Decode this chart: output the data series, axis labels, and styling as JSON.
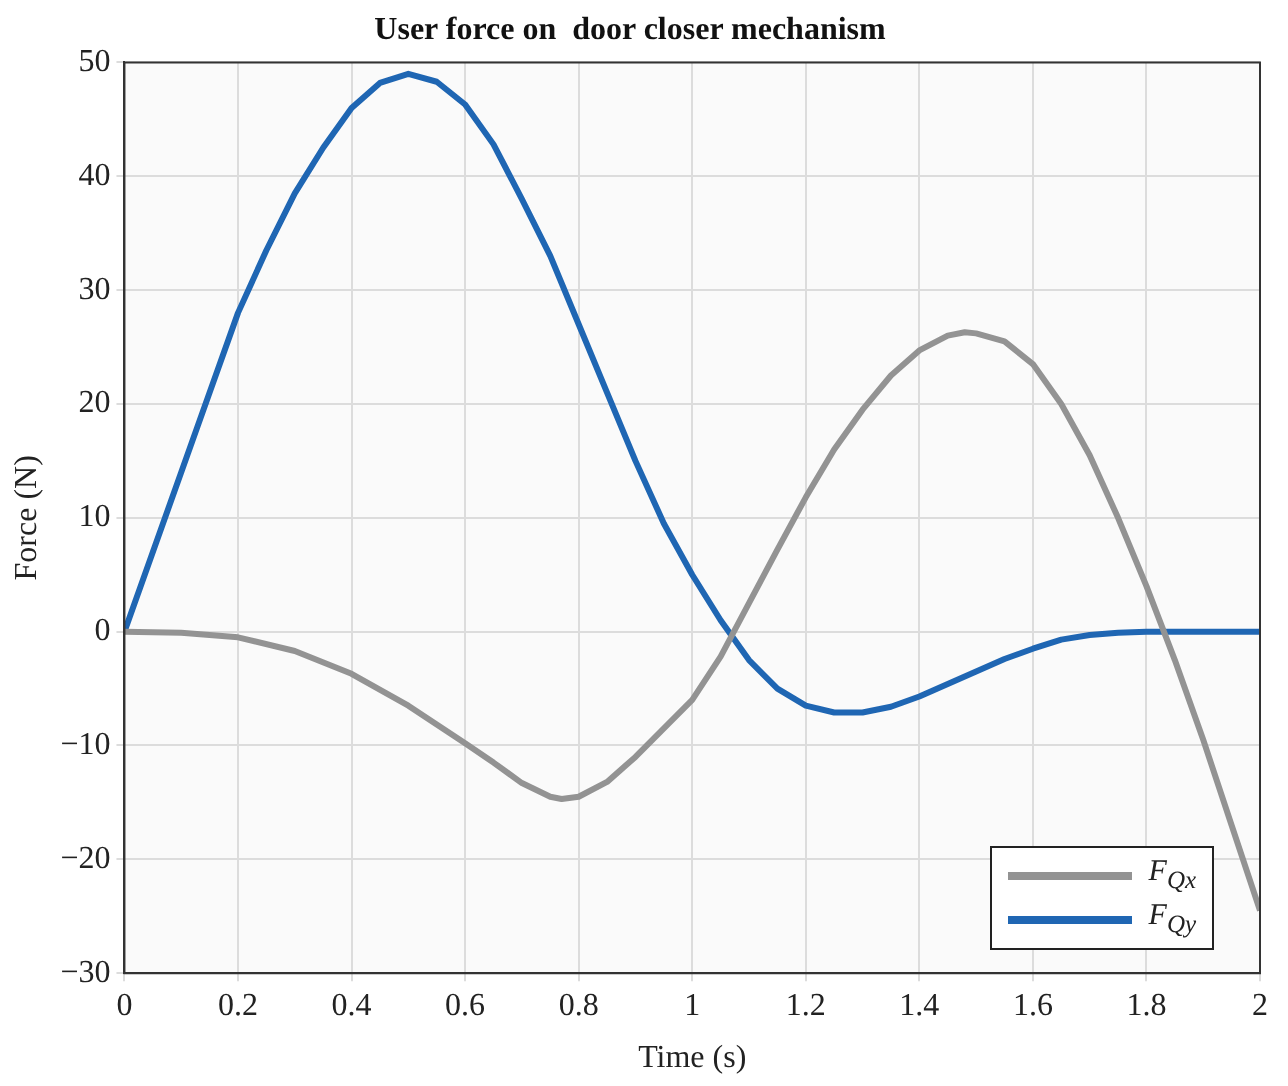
{
  "chart_data": {
    "type": "line",
    "title": "User force on  door closer mechanism",
    "xlabel": "Time (s)",
    "ylabel": "Force (N)",
    "xlim": [
      0,
      2
    ],
    "xticks": [
      0,
      0.2,
      0.4,
      0.6,
      0.8,
      1,
      1.2,
      1.4,
      1.6,
      1.8,
      2
    ],
    "ylim": [
      -30,
      50
    ],
    "yticks": [
      -30,
      -20,
      -10,
      0,
      10,
      20,
      30,
      40,
      50
    ],
    "grid": true,
    "legend": "bottom right",
    "marker": "none",
    "series": [
      {
        "name": "F$_{Qx}$",
        "color": "#939393",
        "x": [
          0,
          0.1,
          0.2,
          0.3,
          0.4,
          0.5,
          0.6,
          0.65,
          0.7,
          0.75,
          0.77,
          0.8,
          0.85,
          0.9,
          0.95,
          1,
          1.05,
          1.1,
          1.15,
          1.2,
          1.25,
          1.3,
          1.35,
          1.4,
          1.45,
          1.48,
          1.5,
          1.55,
          1.6,
          1.65,
          1.7,
          1.75,
          1.8,
          1.85,
          1.9,
          1.95,
          2
        ],
        "values": [
          0,
          -0.1,
          -0.5,
          -1.7,
          -3.7,
          -6.5,
          -9.8,
          -11.5,
          -13.3,
          -14.5,
          -14.7,
          -14.5,
          -13.2,
          -11,
          -8.5,
          -6,
          -2.2,
          2.5,
          7.2,
          11.8,
          16,
          19.5,
          22.5,
          24.7,
          26,
          26.3,
          26.2,
          25.5,
          23.5,
          20,
          15.5,
          10,
          4,
          -2.5,
          -9.5,
          -17,
          -24.5
        ]
      },
      {
        "name": "F$_{Qy}$",
        "color": "#1f66b3",
        "x": [
          0,
          0.05,
          0.1,
          0.15,
          0.2,
          0.25,
          0.3,
          0.35,
          0.4,
          0.45,
          0.5,
          0.55,
          0.6,
          0.65,
          0.7,
          0.75,
          0.8,
          0.85,
          0.9,
          0.95,
          1,
          1.05,
          1.1,
          1.15,
          1.2,
          1.25,
          1.3,
          1.35,
          1.4,
          1.45,
          1.5,
          1.55,
          1.6,
          1.65,
          1.7,
          1.75,
          1.8,
          2
        ],
        "values": [
          0,
          7,
          14,
          21,
          28,
          33.5,
          38.5,
          42.5,
          46,
          48.2,
          49,
          48.3,
          46.3,
          42.8,
          38,
          33,
          27,
          21,
          15,
          9.5,
          5,
          1,
          -2.5,
          -5,
          -6.5,
          -7.1,
          -7.1,
          -6.6,
          -5.7,
          -4.6,
          -3.5,
          -2.4,
          -1.5,
          -0.7,
          -0.3,
          -0.1,
          0,
          0
        ]
      }
    ]
  }
}
